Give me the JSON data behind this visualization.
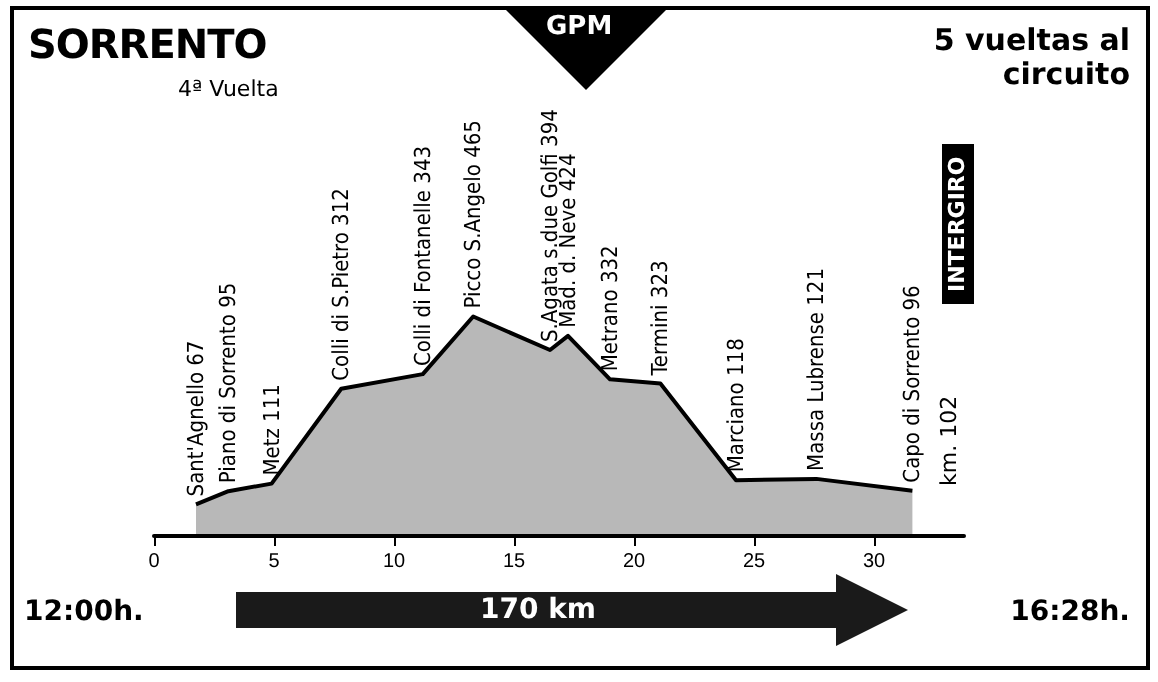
{
  "chart_data": {
    "type": "area",
    "title": "SORRENTO",
    "subtitle": "4ª Vuelta",
    "annotations": [
      "5 vueltas al circuito",
      "GPM",
      "INTERGIRO",
      "km. 102",
      "12:00h.",
      "170 km",
      "16:28h."
    ],
    "x": [
      1.75,
      3.1,
      4.9,
      7.8,
      11.2,
      13.3,
      16.5,
      17.25,
      19,
      21.1,
      24.25,
      27.6,
      31.6
    ],
    "series": [
      {
        "color": "#000000",
        "values": [
          67,
          95,
          111,
          312,
          343,
          465,
          394,
          424,
          332,
          323,
          118,
          121,
          96
        ],
        "value_labels": [
          "Sant'Agnello 67",
          "Piano di Sorrento 95",
          "Metz 111",
          "Colli di S.Pietro 312",
          "Colli di Fontanelle 343",
          "Picco S.Angelo 465",
          "S.Agata s.due Golfi 394",
          "Mad. d. Neve 424",
          "Metrano 332",
          "Termini 323",
          "Marciano 118",
          "Massa Lubrense 121",
          "Capo di Sorrento 96"
        ]
      }
    ],
    "xlim": [
      0,
      33.75
    ],
    "xticks": [
      0,
      5,
      10,
      15,
      20,
      25,
      30
    ],
    "tick_labels": "x",
    "grid": false,
    "marker": "none",
    "line_style": "solid"
  }
}
